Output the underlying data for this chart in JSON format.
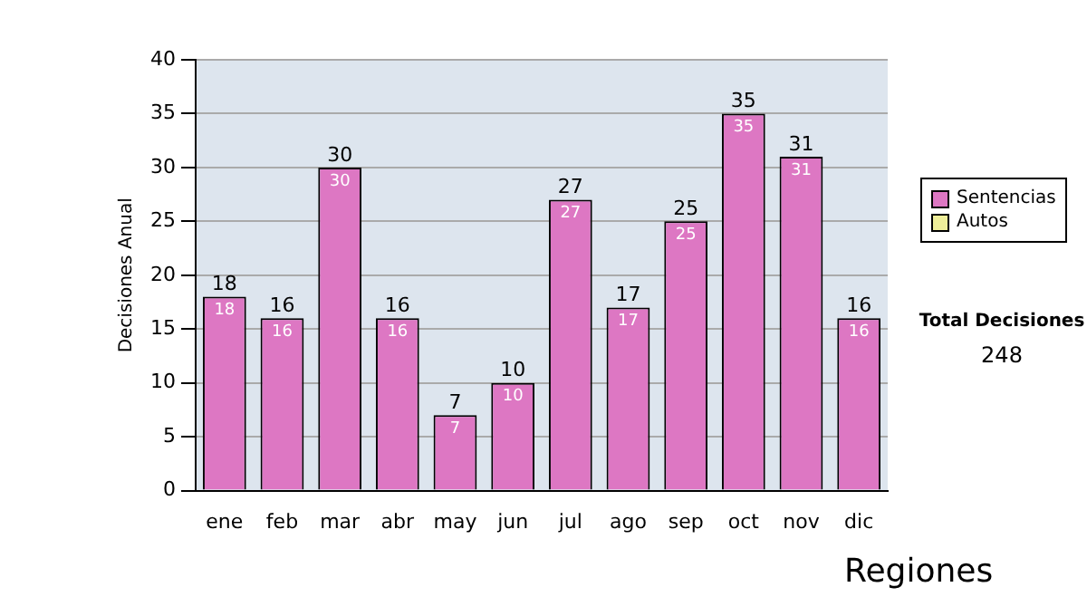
{
  "chart_data": {
    "type": "bar",
    "ylabel": "Decisiones Anual",
    "categories": [
      "ene",
      "feb",
      "mar",
      "abr",
      "may",
      "jun",
      "jul",
      "ago",
      "sep",
      "oct",
      "nov",
      "dic"
    ],
    "series": [
      {
        "name": "Sentencias",
        "color": "#dd77c3",
        "values": [
          18,
          16,
          30,
          16,
          7,
          10,
          27,
          17,
          25,
          35,
          31,
          16
        ],
        "value_labels": [
          "18",
          "16",
          "30",
          "16",
          "7",
          "10",
          "27",
          "17",
          "25",
          "35",
          "31",
          "16"
        ]
      },
      {
        "name": "Autos",
        "color": "#eeee99",
        "values": [
          0,
          0,
          0,
          0,
          0,
          0,
          0,
          0,
          0,
          0,
          0,
          0
        ]
      }
    ],
    "stacked": true,
    "totals": [
      "18",
      "16",
      "30",
      "16",
      "7",
      "10",
      "27",
      "17",
      "25",
      "35",
      "31",
      "16"
    ],
    "ylim": [
      0,
      40
    ],
    "yticks": [
      0,
      5,
      10,
      15,
      20,
      25,
      30,
      35,
      40
    ],
    "grid": "y",
    "legend": "right",
    "annotations": [
      "Total Decisiones",
      "248",
      "Regiones"
    ]
  }
}
